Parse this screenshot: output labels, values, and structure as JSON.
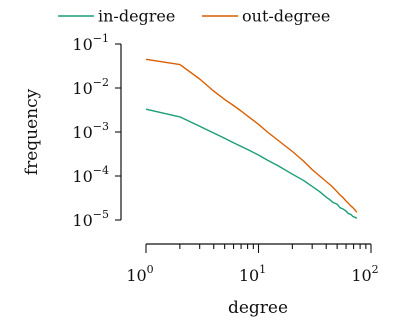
{
  "chart_data": {
    "type": "line",
    "title": "",
    "xlabel": "degree",
    "ylabel": "frequency",
    "x_scale": "log",
    "y_scale": "log",
    "xlim": [
      1,
      100
    ],
    "ylim": [
      1e-05,
      0.1
    ],
    "grid": false,
    "legend_position": "top",
    "x_ticks": [
      {
        "value": 1,
        "base": "10",
        "exp": "0"
      },
      {
        "value": 10,
        "base": "10",
        "exp": "1"
      },
      {
        "value": 100,
        "base": "10",
        "exp": "2"
      }
    ],
    "y_ticks": [
      {
        "value": 0.1,
        "base": "10",
        "exp": "−1"
      },
      {
        "value": 0.01,
        "base": "10",
        "exp": "−2"
      },
      {
        "value": 0.001,
        "base": "10",
        "exp": "−3"
      },
      {
        "value": 0.0001,
        "base": "10",
        "exp": "−4"
      },
      {
        "value": 1e-05,
        "base": "10",
        "exp": "−5"
      }
    ],
    "series": [
      {
        "name": "in-degree",
        "color": "#1b9e77",
        "points": [
          [
            1,
            0.0033
          ],
          [
            2,
            0.0022
          ],
          [
            3,
            0.00135
          ],
          [
            4,
            0.00095
          ],
          [
            5,
            0.00072
          ],
          [
            6,
            0.00057
          ],
          [
            7,
            0.00047
          ],
          [
            8,
            0.0004
          ],
          [
            10,
            0.0003
          ],
          [
            12,
            0.00023
          ],
          [
            15,
            0.00017
          ],
          [
            20,
            0.00011
          ],
          [
            25,
            8e-05
          ],
          [
            30,
            5.8e-05
          ],
          [
            35,
            4.4e-05
          ],
          [
            40,
            3.3e-05
          ],
          [
            43,
            2.9e-05
          ],
          [
            46,
            2.5e-05
          ],
          [
            50,
            2.3e-05
          ],
          [
            53,
            1.9e-05
          ],
          [
            56,
            1.8e-05
          ],
          [
            60,
            1.6e-05
          ],
          [
            63,
            1.4e-05
          ],
          [
            66,
            1.35e-05
          ],
          [
            69,
            1.2e-05
          ],
          [
            72,
            1.15e-05
          ],
          [
            75,
            1.1e-05
          ]
        ]
      },
      {
        "name": "out-degree",
        "color": "#d95f02",
        "points": [
          [
            1,
            0.045
          ],
          [
            2,
            0.034
          ],
          [
            3,
            0.016
          ],
          [
            4,
            0.0085
          ],
          [
            5,
            0.0055
          ],
          [
            6,
            0.004
          ],
          [
            7,
            0.003
          ],
          [
            8,
            0.0023
          ],
          [
            10,
            0.0015
          ],
          [
            12,
            0.001
          ],
          [
            15,
            0.00064
          ],
          [
            20,
            0.00036
          ],
          [
            25,
            0.00022
          ],
          [
            30,
            0.00014
          ],
          [
            35,
            0.0001
          ],
          [
            40,
            7.5e-05
          ],
          [
            45,
            5.8e-05
          ],
          [
            50,
            4.4e-05
          ],
          [
            53,
            3.7e-05
          ],
          [
            56,
            3.3e-05
          ],
          [
            60,
            2.7e-05
          ],
          [
            63,
            2.4e-05
          ],
          [
            66,
            2.1e-05
          ],
          [
            69,
            1.9e-05
          ],
          [
            72,
            1.7e-05
          ],
          [
            75,
            1.5e-05
          ]
        ]
      }
    ]
  }
}
